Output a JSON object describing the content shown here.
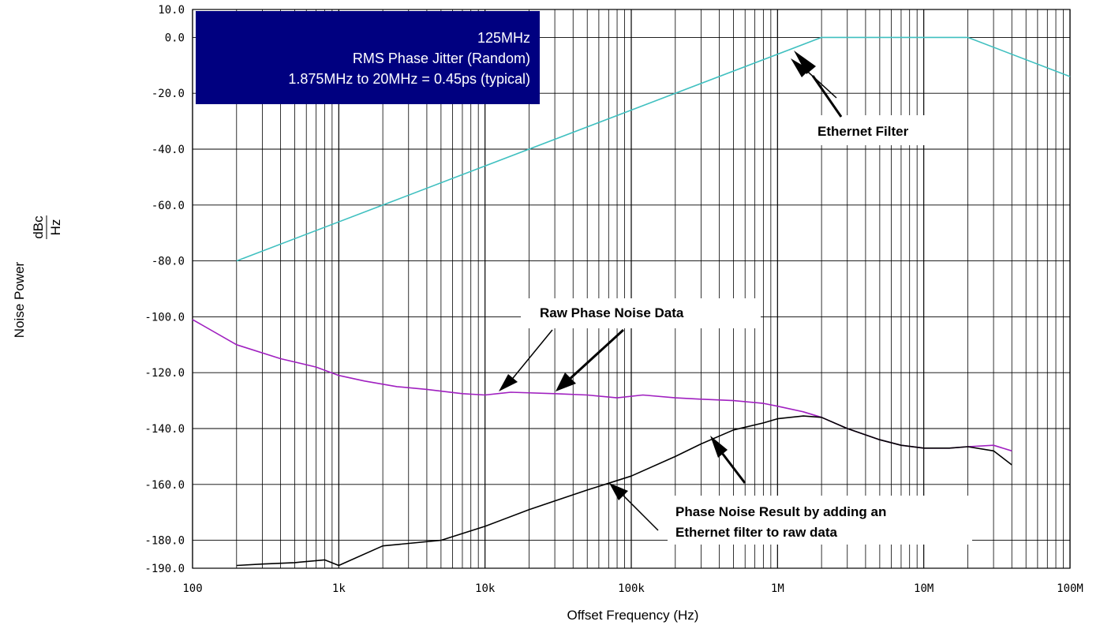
{
  "chart_data": {
    "type": "line",
    "xscale": "log",
    "xlim": [
      100,
      100000000
    ],
    "ylim": [
      -190,
      10
    ],
    "grid": true,
    "xlabel": "Offset Frequency (Hz)",
    "ylabel": "Noise Power",
    "ylabel_unit_num": "dBc",
    "ylabel_unit_den": "Hz",
    "x_tick_values": [
      100,
      1000,
      10000,
      100000,
      1000000,
      10000000,
      100000000
    ],
    "x_tick_labels": [
      "100",
      "1k",
      "10k",
      "100k",
      "1M",
      "10M",
      "100M"
    ],
    "y_tick_values": [
      10,
      0,
      -20,
      -40,
      -60,
      -80,
      -100,
      -120,
      -140,
      -160,
      -180,
      -190
    ],
    "y_tick_labels": [
      "10.0",
      "0.0",
      "-20.0",
      "-40.0",
      "-60.0",
      "-80.0",
      "-100.0",
      "-120.0",
      "-140.0",
      "-160.0",
      "-180.0",
      "-190.0"
    ],
    "info_box": {
      "lines": [
        "125MHz",
        "RMS Phase Jitter (Random)",
        "1.875MHz to 20MHz = 0.45ps (typical)"
      ],
      "background": "#000080",
      "text_color": "#ffffff"
    },
    "annotations": {
      "ethernet_filter": "Ethernet Filter",
      "raw_phase_noise": "Raw Phase Noise Data",
      "result_line1": "Phase Noise Result by adding an",
      "result_line2": "Ethernet filter to raw data"
    },
    "series": [
      {
        "key": "ethernet_filter",
        "color": "#40c0c0",
        "x": [
          200,
          2000000,
          20000000,
          100000000
        ],
        "y": [
          -80,
          0,
          0,
          -14
        ]
      },
      {
        "key": "raw",
        "color": "#a020c0",
        "x": [
          100,
          200,
          400,
          700,
          1000,
          1500,
          2500,
          4000,
          7000,
          10000,
          15000,
          30000,
          50000,
          80000,
          120000,
          200000,
          300000,
          500000,
          800000,
          1000000,
          1500000,
          2000000,
          3000000,
          5000000,
          7000000,
          10000000,
          15000000,
          20000000,
          30000000,
          40000000
        ],
        "y": [
          -101,
          -110,
          -115,
          -118,
          -121,
          -123,
          -125,
          -126,
          -127.5,
          -128,
          -127,
          -127.5,
          -128,
          -129,
          -128,
          -129,
          -129.5,
          -130,
          -131,
          -132,
          -134,
          -136,
          -140,
          -144,
          -146,
          -147,
          -147,
          -146.5,
          -146,
          -148
        ]
      },
      {
        "key": "result",
        "color": "#000000",
        "x": [
          200,
          300,
          500,
          800,
          1000,
          2000,
          5000,
          10000,
          20000,
          50000,
          100000,
          200000,
          300000,
          500000,
          800000,
          1000000,
          1500000,
          2000000,
          3000000,
          5000000,
          7000000,
          10000000,
          15000000,
          20000000,
          30000000,
          40000000
        ],
        "y": [
          -189,
          -188.5,
          -188,
          -187,
          -189,
          -182,
          -180,
          -175,
          -169,
          -162,
          -157,
          -150,
          -145.5,
          -140.5,
          -138,
          -136.5,
          -135.5,
          -136,
          -140,
          -144,
          -146,
          -147,
          -147,
          -146.5,
          -148,
          -153
        ]
      }
    ]
  }
}
